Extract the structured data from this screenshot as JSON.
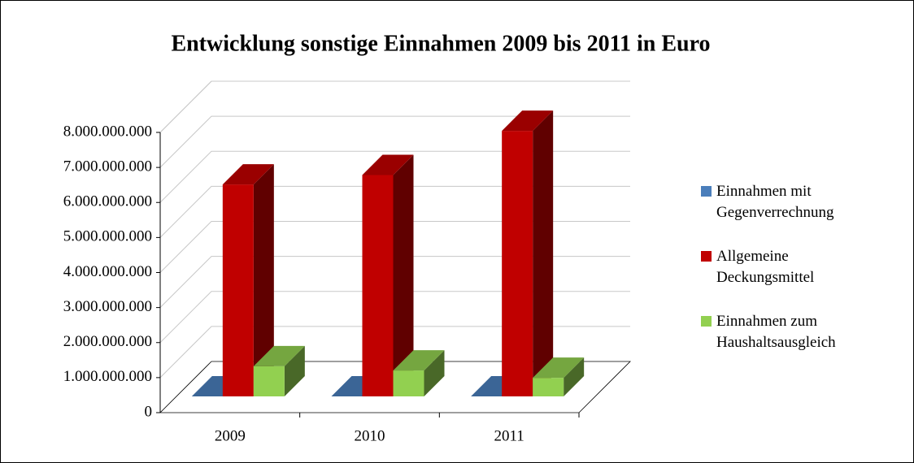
{
  "chart_data": {
    "type": "bar3d",
    "title": "Entwicklung sonstige Einnahmen 2009 bis 2011 in Euro",
    "categories": [
      "2009",
      "2010",
      "2011"
    ],
    "series": [
      {
        "name": "Einnahmen mit Gegenverrechnung",
        "color": "#4a7ebb",
        "values": [
          0,
          0,
          0
        ]
      },
      {
        "name": "Allgemeine Deckungsmittel",
        "color": "#c00000",
        "values": [
          6050000000,
          6320000000,
          7580000000
        ]
      },
      {
        "name": "Einnahmen zum Haushaltsausgleich",
        "color": "#92d050",
        "values": [
          860000000,
          740000000,
          530000000
        ]
      }
    ],
    "ylim": [
      0,
      8000000000
    ],
    "yticks": [
      0,
      {
        "value": 1000000000,
        "label": "1.000.000.000"
      },
      {
        "value": 2000000000,
        "label": "2.000.000.000"
      },
      {
        "value": 3000000000,
        "label": "3.000.000.000"
      },
      {
        "value": 4000000000,
        "label": "4.000.000.000"
      },
      {
        "value": 5000000000,
        "label": "5.000.000.000"
      },
      {
        "value": 6000000000,
        "label": "6.000.000.000"
      },
      {
        "value": 7000000000,
        "label": "7.000.000.000"
      },
      {
        "value": 8000000000,
        "label": "8.000.000.000"
      }
    ],
    "grid": true,
    "legend": "right"
  }
}
